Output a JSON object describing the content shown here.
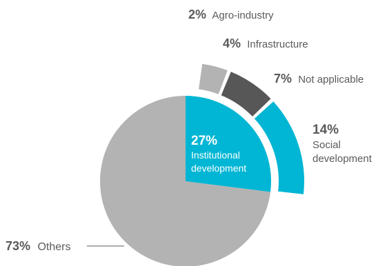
{
  "chart_data": {
    "type": "pie",
    "slices": [
      {
        "label": "Others",
        "percent": "73%",
        "value": 73,
        "color": "#b3b3b3"
      },
      {
        "label": "Institutional development",
        "label_lines": [
          "Institutional",
          "development"
        ],
        "percent": "27%",
        "value": 27,
        "color": "#00b6d4"
      }
    ],
    "breakdown": [
      {
        "label": "Social development",
        "label_lines": [
          "Social",
          "development"
        ],
        "percent": "14%",
        "value": 14,
        "color": "#00b6d4"
      },
      {
        "label": "Not applicable",
        "percent": "7%",
        "value": 7,
        "color": "#575757"
      },
      {
        "label": "Infrastructure",
        "percent": "4%",
        "value": 4,
        "color": "#b3b3b3"
      },
      {
        "label": "Agro-industry",
        "percent": "2%",
        "value": 2,
        "color": "#ffffff"
      }
    ]
  }
}
